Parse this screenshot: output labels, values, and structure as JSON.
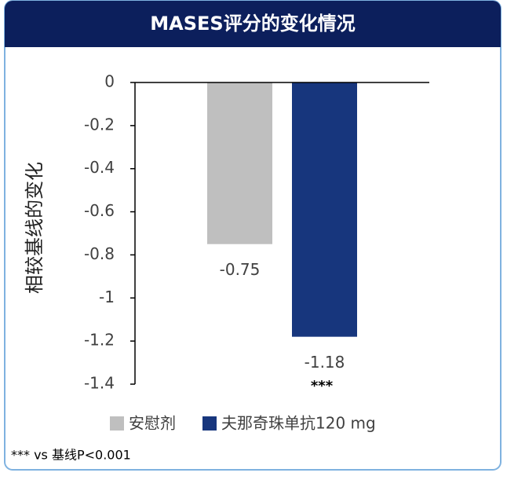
{
  "chart_data": {
    "type": "bar",
    "title": "MASES评分的变化情况",
    "y_label": "相较基线的变化",
    "categories": [
      null
    ],
    "series": [
      {
        "name": "安慰剂",
        "color": "#bfbfbf",
        "values": [
          -0.75
        ]
      },
      {
        "name": "夫那奇珠单抗120 mg",
        "color": "#17367d",
        "values": [
          -1.18
        ]
      }
    ],
    "annotation": "***",
    "footnote": "*** vs 基线P<0.001",
    "ylim": [
      -1.4,
      0
    ],
    "yticks": [
      0,
      -0.2,
      -0.4,
      -0.6,
      -0.8,
      -1,
      -1.2,
      -1.4
    ],
    "grid": false
  }
}
